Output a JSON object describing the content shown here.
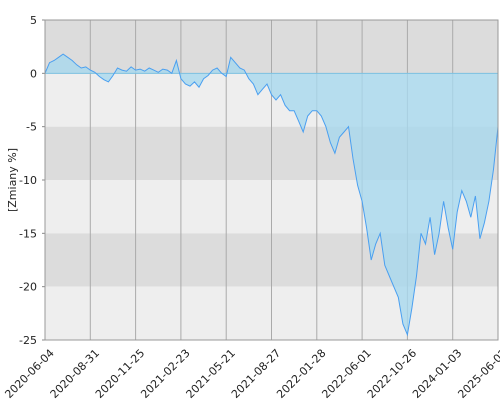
{
  "chart_data": {
    "type": "area",
    "y_label": "[Zmiany %]",
    "categories": [
      "2020-06-04",
      null,
      null,
      null,
      null,
      null,
      null,
      null,
      null,
      null,
      "2020-08-31",
      null,
      null,
      null,
      null,
      null,
      null,
      null,
      null,
      null,
      "2020-11-25",
      null,
      null,
      null,
      null,
      null,
      null,
      null,
      null,
      null,
      "2021-02-23",
      null,
      null,
      null,
      null,
      null,
      null,
      null,
      null,
      null,
      "2021-05-21",
      null,
      null,
      null,
      null,
      null,
      null,
      null,
      null,
      null,
      "2021-08-27",
      null,
      null,
      null,
      null,
      null,
      null,
      null,
      null,
      null,
      "2022-01-28",
      null,
      null,
      null,
      null,
      null,
      null,
      null,
      null,
      null,
      "2022-06-01",
      null,
      null,
      null,
      null,
      null,
      null,
      null,
      null,
      null,
      "2022-10-26",
      null,
      null,
      null,
      null,
      null,
      null,
      null,
      null,
      null,
      "2024-01-03",
      null,
      null,
      null,
      null,
      null,
      null,
      null,
      null,
      null,
      "2025-06-02"
    ],
    "values": [
      0,
      1,
      1.2,
      1.5,
      1.8,
      1.5,
      1.2,
      0.8,
      0.5,
      0.6,
      0.3,
      0.1,
      -0.3,
      -0.6,
      -0.8,
      -0.2,
      0.5,
      0.3,
      0.2,
      0.6,
      0.3,
      0.4,
      0.2,
      0.5,
      0.3,
      0.1,
      0.4,
      0.3,
      0.0,
      1.2,
      -0.5,
      -1.0,
      -1.2,
      -0.8,
      -1.3,
      -0.5,
      -0.2,
      0.3,
      0.5,
      0.0,
      -0.3,
      1.5,
      1.0,
      0.5,
      0.3,
      -0.5,
      -1.0,
      -2.0,
      -1.5,
      -1.0,
      -2.0,
      -2.5,
      -2.0,
      -3.0,
      -3.5,
      -3.5,
      -4.5,
      -5.5,
      -4.0,
      -3.5,
      -3.5,
      -4.0,
      -5.0,
      -6.5,
      -7.5,
      -6.0,
      -5.5,
      -5.0,
      -8.0,
      -10.5,
      -12.0,
      -14.5,
      -17.5,
      -16.0,
      -15.0,
      -18.0,
      -19.0,
      -20.0,
      -21.0,
      -23.5,
      -24.5,
      -22.0,
      -19.0,
      -15.0,
      -16.0,
      -13.5,
      -17.0,
      -15.0,
      -12.0,
      -14.5,
      -16.5,
      -13.0,
      -11.0,
      -12.0,
      -13.5,
      -11.5,
      -15.5,
      -14.0,
      -12.0,
      -9.0,
      -5.0
    ],
    "color": "#4a9ff0",
    "fill_color": "#a8d8ee",
    "ylim": [
      -25,
      5
    ],
    "yticks": [
      5,
      0,
      -5,
      -10,
      -15,
      -20,
      -25
    ],
    "grid": true
  }
}
